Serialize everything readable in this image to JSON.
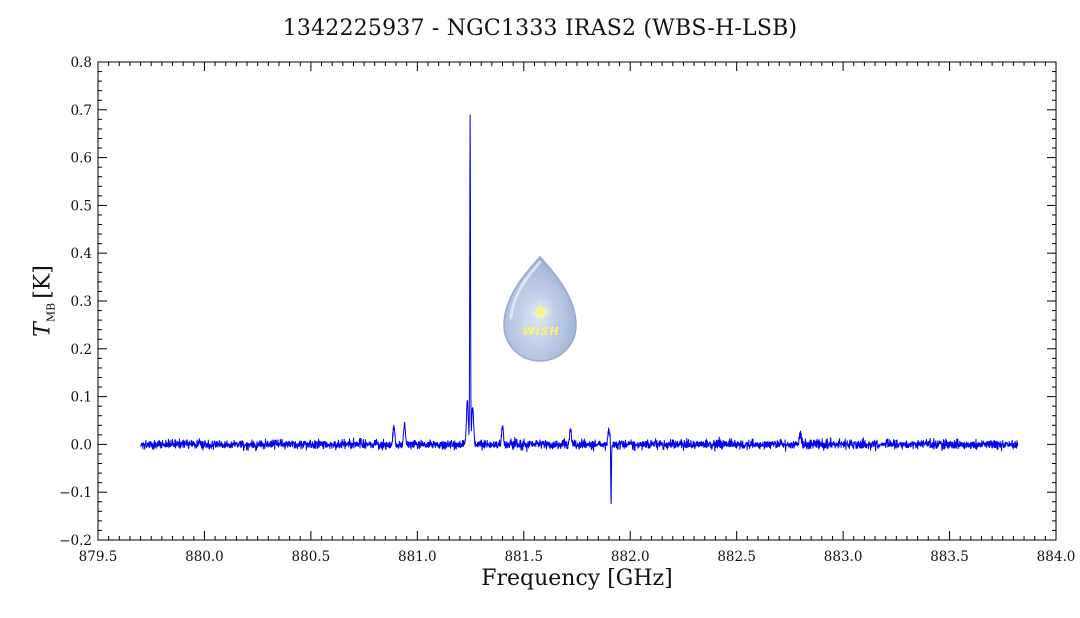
{
  "chart_data": {
    "type": "line",
    "title": "1342225937 - NGC1333 IRAS2 (WBS-H-LSB)",
    "xlabel": "Frequency [GHz]",
    "ylabel_symbol": "T",
    "ylabel_subscript": "MB",
    "ylabel_unit": "[K]",
    "xlim": [
      879.5,
      884.0
    ],
    "ylim": [
      -0.2,
      0.8
    ],
    "xticks": [
      879.5,
      880.0,
      880.5,
      881.0,
      881.5,
      882.0,
      882.5,
      883.0,
      883.5,
      884.0
    ],
    "xtick_labels": [
      "879.5",
      "880.0",
      "880.5",
      "881.0",
      "881.5",
      "882.0",
      "882.5",
      "883.0",
      "883.5",
      "884.0"
    ],
    "yticks": [
      -0.2,
      -0.1,
      0.0,
      0.1,
      0.2,
      0.3,
      0.4,
      0.5,
      0.6,
      0.7,
      0.8
    ],
    "ytick_labels": [
      "−0.2",
      "−0.1",
      "0.0",
      "0.1",
      "0.2",
      "0.3",
      "0.4",
      "0.5",
      "0.6",
      "0.7",
      "0.8"
    ],
    "grid": false,
    "line_color": "#0000ee",
    "series": [
      {
        "x_range": [
          879.7,
          883.82
        ],
        "noise_rms": 0.009,
        "baseline": 0.0,
        "features": [
          {
            "x": 880.89,
            "y": 0.035
          },
          {
            "x": 880.94,
            "y": 0.045
          },
          {
            "x": 881.235,
            "y": 0.09
          },
          {
            "x": 881.248,
            "y": 0.68
          },
          {
            "x": 881.26,
            "y": 0.08
          },
          {
            "x": 881.4,
            "y": 0.04
          },
          {
            "x": 881.72,
            "y": 0.03
          },
          {
            "x": 881.91,
            "y": -0.13
          },
          {
            "x": 881.9,
            "y": 0.03
          },
          {
            "x": 882.8,
            "y": 0.025
          }
        ]
      }
    ]
  },
  "logo": {
    "text": "WISH",
    "colors": {
      "drop": "#aebfdf",
      "rim": "#7f94bf",
      "star": "#fff36a"
    }
  }
}
